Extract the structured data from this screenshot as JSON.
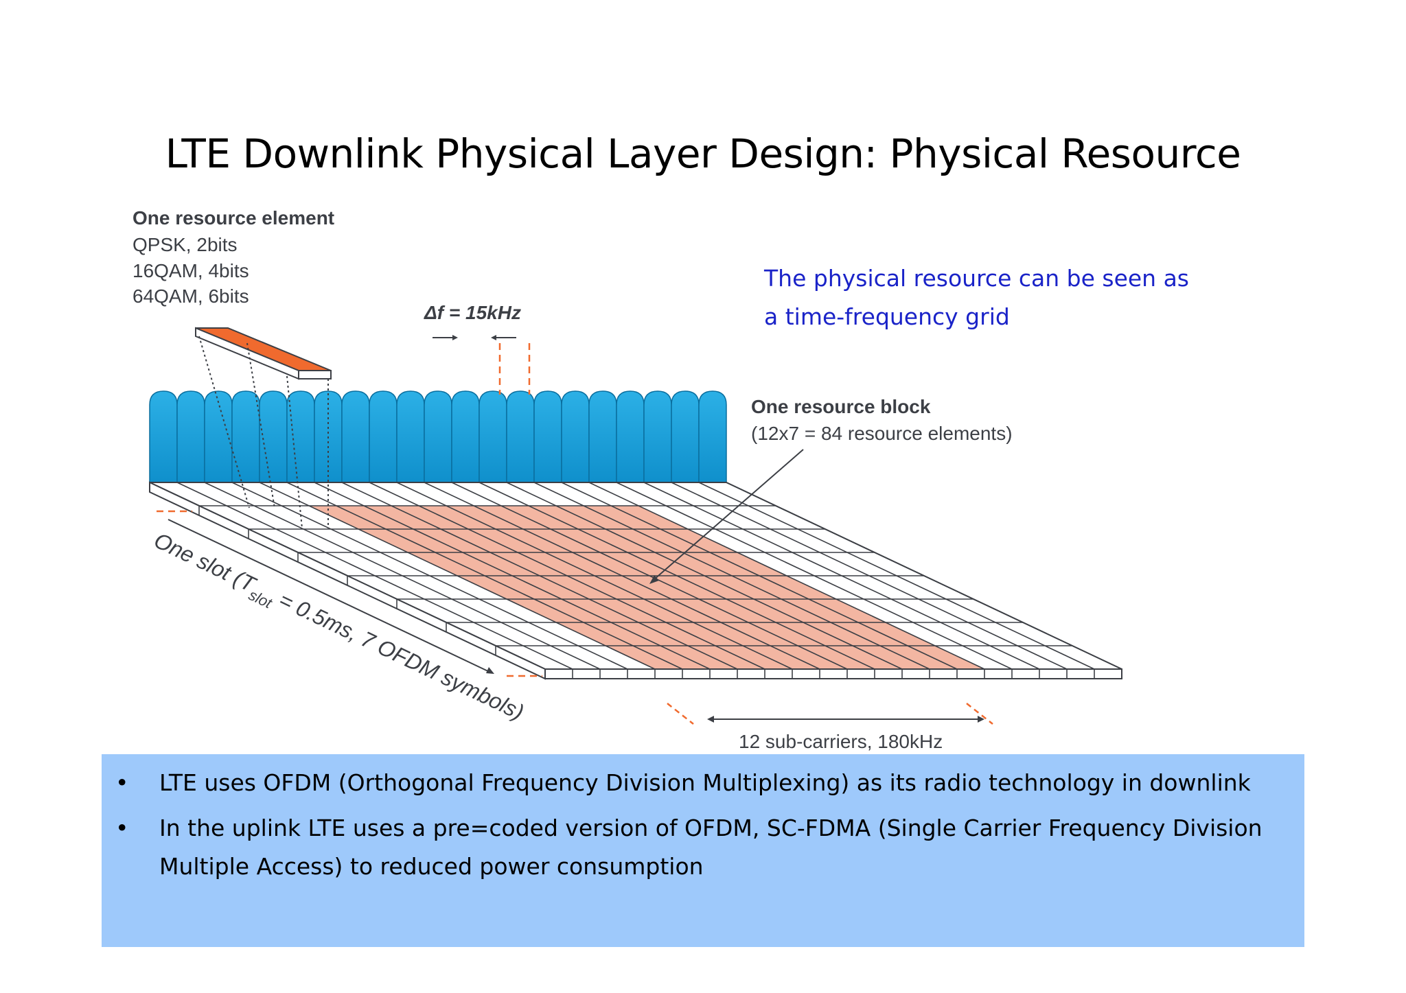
{
  "title": "LTE Downlink Physical Layer Design: Physical Resource",
  "resource_element": {
    "heading": "One resource element",
    "lines": [
      "QPSK, 2bits",
      "16QAM, 4bits",
      "64QAM, 6bits"
    ]
  },
  "delta_f": "Δf = 15kHz",
  "note": {
    "line1": "The physical resource can be seen as",
    "line2": "a time-frequency grid"
  },
  "resource_block": {
    "heading": "One resource block",
    "detail": "(12x7 = 84 resource elements)"
  },
  "slot_label": {
    "prefix": "One slot (T",
    "subscript": "slot",
    "suffix": " = 0.5ms, 7 OFDM symbols)"
  },
  "subcarriers_label": "12 sub-carriers, 180kHz",
  "bullet_char": "•",
  "bullets": [
    "LTE uses OFDM (Orthogonal Frequency Division Multiplexing) as its radio technology in downlink",
    "In the uplink LTE uses a pre=coded version of OFDM, SC-FDMA (Single Carrier Frequency Division Multiple Access) to reduced power consumption"
  ],
  "colors": {
    "subcarrier_fill": "#1aa0d8",
    "highlight_fill": "#f3b6a2",
    "highlight_dark": "#f06a2e",
    "note_text": "#1a23c8",
    "bullet_box": "#9ec9fb"
  }
}
